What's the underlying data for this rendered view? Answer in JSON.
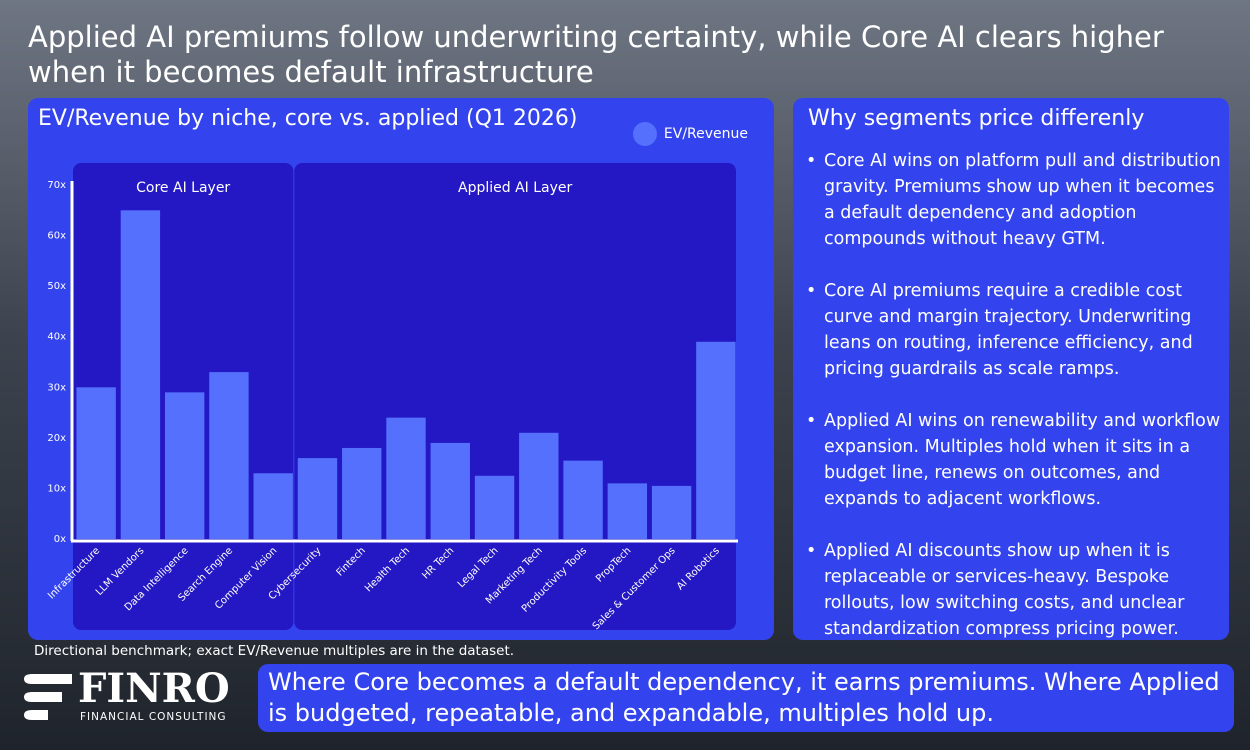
{
  "headline": "Applied AI premiums follow underwriting certainty, while Core AI clears higher when it becomes default infrastructure",
  "chart_panel": {
    "title": "EV/Revenue by niche, core vs. applied (Q1 2026)"
  },
  "colors": {
    "panel": "#3344ee",
    "group_box": "#2417c4",
    "bar": "#5470fd",
    "axis": "#ffffff"
  },
  "chart_data": {
    "type": "bar",
    "title": "EV/Revenue by niche, core vs. applied (Q1 2026)",
    "legend": {
      "entries": [
        "EV/Revenue"
      ],
      "position": "top-right"
    },
    "series": [
      {
        "name": "EV/Revenue",
        "values": [
          30,
          65,
          29,
          33,
          13,
          16,
          18,
          24,
          19,
          12.5,
          21,
          15.5,
          11,
          10.5,
          39
        ]
      }
    ],
    "categories": [
      "Infrastructure",
      "LLM Vendors",
      "Data Intelligence",
      "Search Engine",
      "Computer Vision",
      "Cybersecurity",
      "Fintech",
      "Health Tech",
      "HR Tech",
      "Legal Tech",
      "Marketing Tech",
      "Productivity Tools",
      "PropTech",
      "Sales & Customer Ops",
      "AI Robotics"
    ],
    "groups": [
      {
        "label": "Core AI Layer",
        "from": 0,
        "to": 4
      },
      {
        "label": "Applied AI Layer",
        "from": 5,
        "to": 14
      }
    ],
    "ylim": [
      0,
      70
    ],
    "yticks": [
      0,
      10,
      20,
      30,
      40,
      50,
      60,
      70
    ],
    "ytick_labels": [
      "0x",
      "10x",
      "20x",
      "30x",
      "40x",
      "50x",
      "60x",
      "70x"
    ],
    "grid": false
  },
  "right_panel": {
    "title": "Why segments price differenly",
    "bullets": [
      "Core AI wins on platform pull and distribution gravity. Premiums show up when it becomes a default dependency and adoption compounds without heavy GTM.",
      "Core AI premiums require a credible cost curve and margin trajectory. Underwriting leans on routing, inference efficiency, and pricing guardrails as scale ramps.",
      "Applied AI wins on renewability and workflow expansion. Multiples hold when it sits in a budget line, renews on outcomes, and expands to adjacent workflows.",
      "Applied AI discounts show up when it is replaceable or services-heavy. Bespoke rollouts, low switching costs, and unclear standardization compress pricing power."
    ]
  },
  "footnote": "Directional benchmark; exact EV/Revenue multiples are in the dataset.",
  "logo": {
    "name": "FINRO",
    "tagline": "FINANCIAL CONSULTING"
  },
  "conclusion": "Where Core becomes a default dependency, it earns premiums. Where Applied is budgeted, repeatable, and expandable, multiples hold up."
}
